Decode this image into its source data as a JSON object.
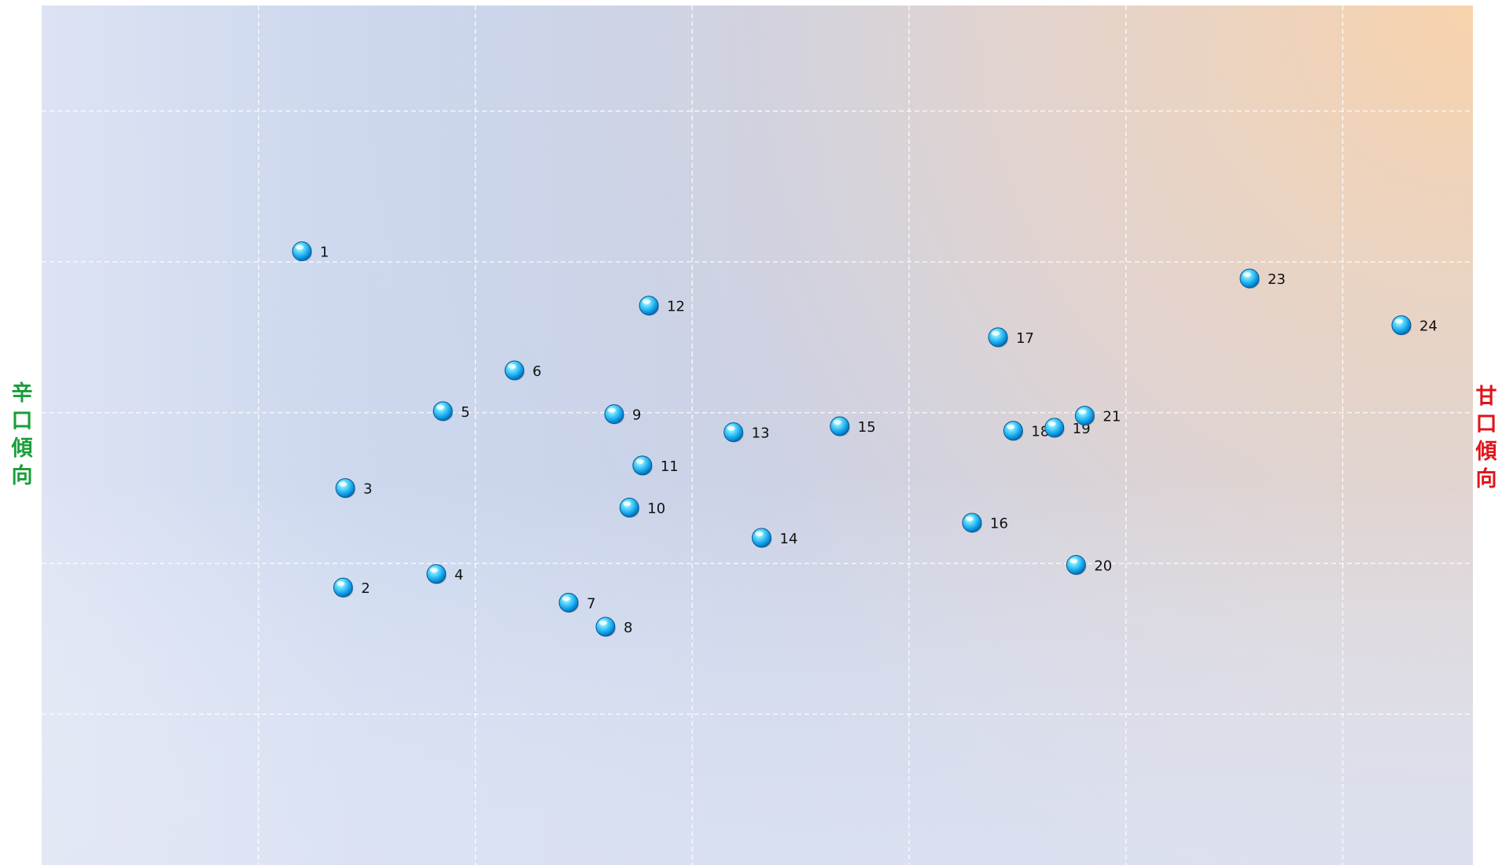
{
  "chart_data": {
    "type": "scatter",
    "title": "",
    "xlabel": "",
    "ylabel": "",
    "side_labels": {
      "left": "辛口傾向",
      "right": "甘口傾向"
    },
    "xlim": [
      0,
      6.6
    ],
    "ylim": [
      0,
      5.7
    ],
    "grid": true,
    "legend": "none",
    "points": [
      {
        "label": "1",
        "x": 1.2,
        "y": 4.07
      },
      {
        "label": "2",
        "x": 1.39,
        "y": 1.84
      },
      {
        "label": "3",
        "x": 1.4,
        "y": 2.5
      },
      {
        "label": "4",
        "x": 1.82,
        "y": 1.93
      },
      {
        "label": "5",
        "x": 1.85,
        "y": 3.01
      },
      {
        "label": "6",
        "x": 2.18,
        "y": 3.28
      },
      {
        "label": "7",
        "x": 2.43,
        "y": 1.74
      },
      {
        "label": "8",
        "x": 2.6,
        "y": 1.58
      },
      {
        "label": "9",
        "x": 2.64,
        "y": 2.99
      },
      {
        "label": "10",
        "x": 2.71,
        "y": 2.37
      },
      {
        "label": "11",
        "x": 2.77,
        "y": 2.65
      },
      {
        "label": "12",
        "x": 2.8,
        "y": 3.71
      },
      {
        "label": "13",
        "x": 3.19,
        "y": 2.87
      },
      {
        "label": "14",
        "x": 3.32,
        "y": 2.17
      },
      {
        "label": "15",
        "x": 3.68,
        "y": 2.91
      },
      {
        "label": "16",
        "x": 4.29,
        "y": 2.27
      },
      {
        "label": "17",
        "x": 4.41,
        "y": 3.5
      },
      {
        "label": "18",
        "x": 4.48,
        "y": 2.88
      },
      {
        "label": "19",
        "x": 4.67,
        "y": 2.9
      },
      {
        "label": "20",
        "x": 4.77,
        "y": 1.99
      },
      {
        "label": "21",
        "x": 4.81,
        "y": 2.98
      },
      {
        "label": "23",
        "x": 5.57,
        "y": 3.89
      },
      {
        "label": "24",
        "x": 6.27,
        "y": 3.58
      }
    ]
  },
  "colors": {
    "marker": "#0a9be6",
    "marker_highlight": "#6fe3ff",
    "left_label": "#1a9e3a",
    "right_label": "#e0141a",
    "grid": "#ffffff",
    "background_cool": "#c7d3ec",
    "background_warm": "#f3cfab"
  }
}
